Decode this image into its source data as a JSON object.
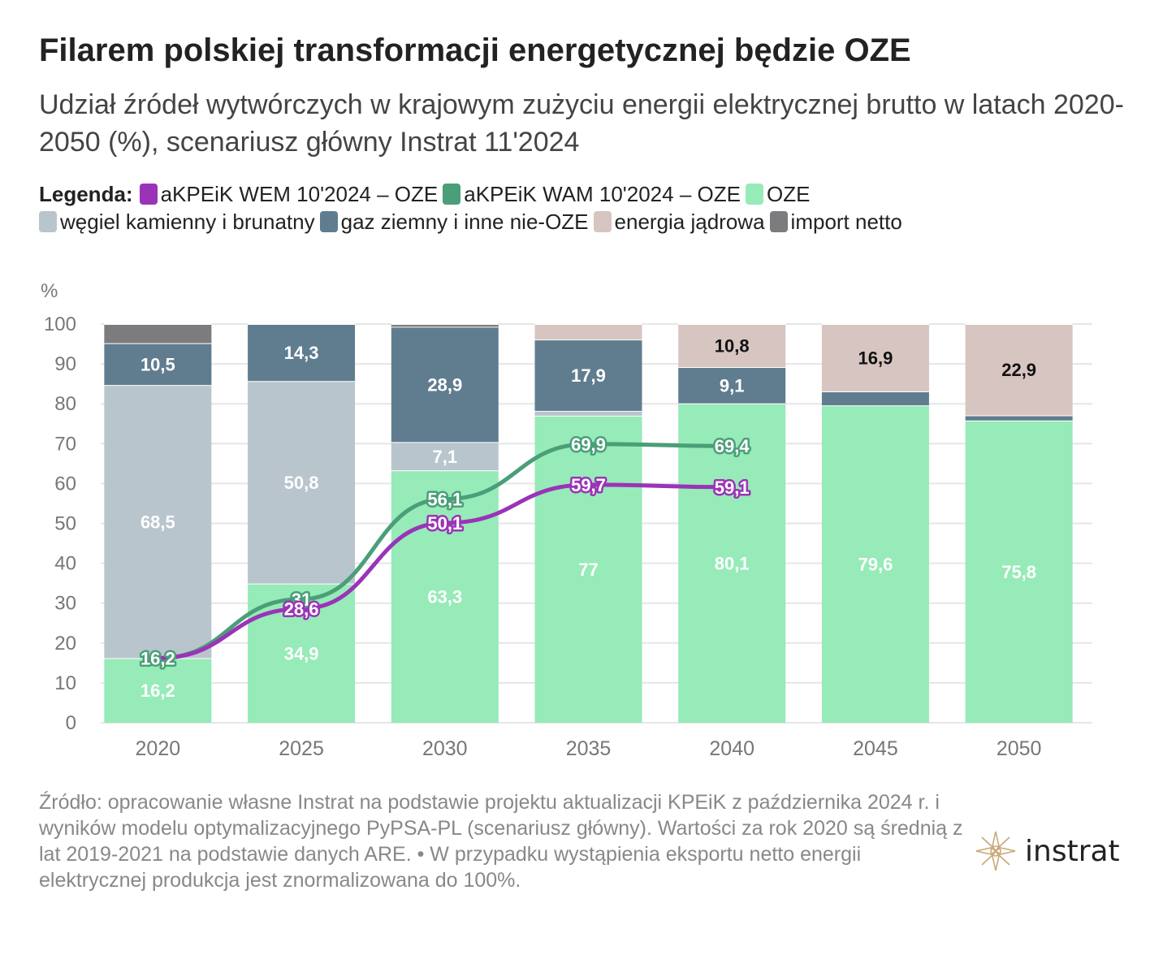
{
  "title": "Filarem polskiej transformacji energetycznej będzie OZE",
  "subtitle": "Udział źródeł wytwórczych w krajowym zużyciu energii elektrycznej brutto w latach 2020-2050 (%), scenariusz główny Instrat 11'2024",
  "legend": {
    "title": "Legenda:",
    "items": [
      {
        "label": "aKPEiK WEM 10'2024 – OZE",
        "color": "#9b33b8"
      },
      {
        "label": "aKPEiK WAM 10'2024 – OZE",
        "color": "#4a9e78"
      },
      {
        "label": "OZE",
        "color": "#96ebb8"
      },
      {
        "label": "węgiel kamienny i brunatny",
        "color": "#b8c5cd"
      },
      {
        "label": "gaz ziemny i inne nie-OZE",
        "color": "#607d90"
      },
      {
        "label": "energia jądrowa",
        "color": "#d6c5c1"
      },
      {
        "label": "import netto",
        "color": "#7c7c7f"
      }
    ]
  },
  "source": "Źródło: opracowanie własne Instrat na podstawie projektu aktualizacji KPEiK z października 2024 r. i wyników modelu optymalizacyjnego PyPSA-PL (scenariusz główny). Wartości za rok 2020 są średnią z lat 2019-2021 na podstawie danych ARE. • W przypadku wystąpienia eksportu netto energii elektrycznej produkcja jest znormalizowana do 100%.",
  "logo_text": "instrat",
  "chart_data": {
    "type": "bar",
    "stacked": true,
    "ylabel": "%",
    "ylim": [
      0,
      100
    ],
    "yticks": [
      0,
      10,
      20,
      30,
      40,
      50,
      60,
      70,
      80,
      90,
      100
    ],
    "grid": true,
    "categories": [
      "2020",
      "2025",
      "2030",
      "2035",
      "2040",
      "2045",
      "2050"
    ],
    "series": [
      {
        "name": "OZE",
        "color": "#96ebb8",
        "values": [
          16.2,
          34.9,
          63.3,
          77,
          80.1,
          79.6,
          75.8
        ],
        "labels": [
          "16,2",
          "34,9",
          "63,3",
          "77",
          "80,1",
          "79,6",
          "75,8"
        ],
        "label_color": "#ffffff"
      },
      {
        "name": "węgiel kamienny i brunatny",
        "color": "#b8c5cd",
        "values": [
          68.5,
          50.8,
          7.1,
          1.2,
          0,
          0,
          0
        ],
        "labels": [
          "68,5",
          "50,8",
          "7,1",
          "",
          "",
          "",
          ""
        ],
        "label_color": "#ffffff"
      },
      {
        "name": "gaz ziemny i inne nie-OZE",
        "color": "#607d90",
        "values": [
          10.5,
          14.3,
          28.9,
          17.9,
          9.1,
          3.5,
          1.3
        ],
        "labels": [
          "10,5",
          "14,3",
          "28,9",
          "17,9",
          "9,1",
          "",
          ""
        ],
        "label_color": "#ffffff"
      },
      {
        "name": "energia jądrowa",
        "color": "#d6c5c1",
        "values": [
          0,
          0,
          0,
          3.9,
          10.8,
          16.9,
          22.9
        ],
        "labels": [
          "",
          "",
          "",
          "",
          "10,8",
          "16,9",
          "22,9"
        ],
        "label_color": "#111111"
      },
      {
        "name": "import netto",
        "color": "#7c7c7f",
        "values": [
          4.8,
          0,
          0.7,
          0,
          0,
          0,
          0
        ],
        "labels": [
          "",
          "",
          "",
          "",
          "",
          "",
          ""
        ],
        "label_color": "#ffffff"
      }
    ],
    "lines": [
      {
        "name": "aKPEiK WAM 10'2024 – OZE",
        "color": "#4a9e78",
        "x": [
          "2020",
          "2025",
          "2030",
          "2035",
          "2040"
        ],
        "values": [
          16.2,
          31,
          56.1,
          69.9,
          69.4
        ],
        "labels": [
          "16,2",
          "31",
          "56,1",
          "69,9",
          "69,4"
        ]
      },
      {
        "name": "aKPEiK WEM 10'2024 – OZE",
        "color": "#9b33b8",
        "x": [
          "2020",
          "2025",
          "2030",
          "2035",
          "2040"
        ],
        "values": [
          16.2,
          28.6,
          50.1,
          59.7,
          59.1
        ],
        "labels": [
          "",
          "28,6",
          "50,1",
          "59,7",
          "59,1"
        ]
      }
    ]
  }
}
